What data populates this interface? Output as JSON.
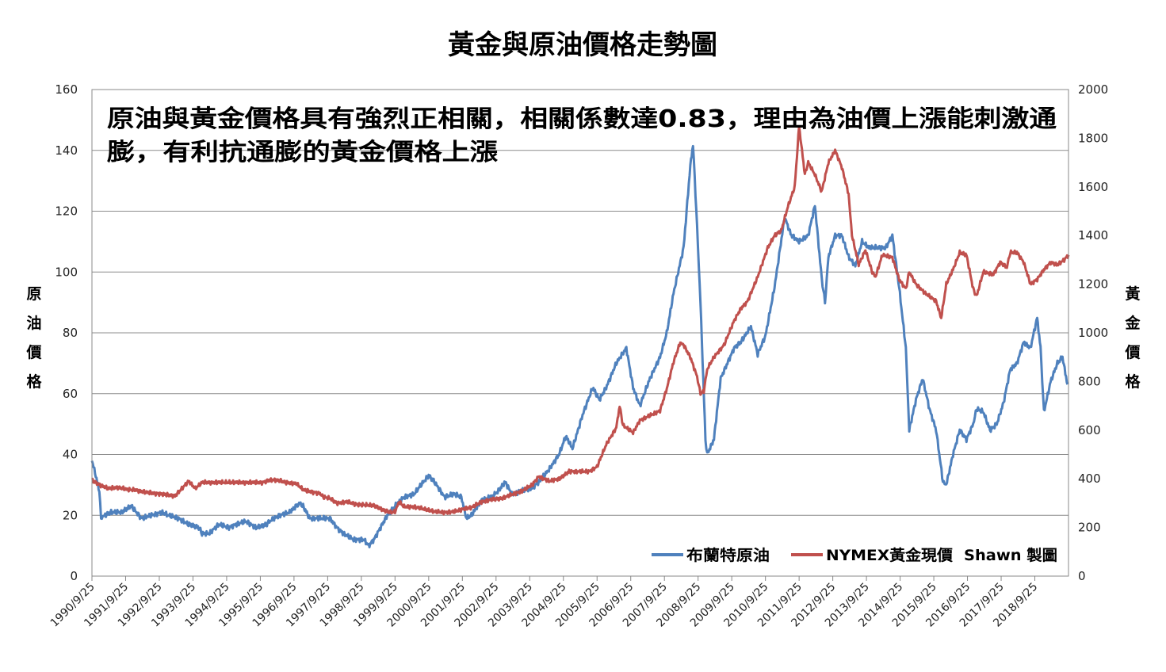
{
  "chart_data": {
    "type": "line",
    "title": "黃金與原油價格走勢圖",
    "annotation_lines": [
      "原油與黃金價格具有強烈正相關，相關係數達0.83，理由為油價上漲能刺激通",
      "膨，有利抗通膨的黃金價格上漲"
    ],
    "ylabel_left": [
      "原",
      "油",
      "價",
      "格"
    ],
    "ylabel_right": [
      "黃",
      "金",
      "價",
      "格"
    ],
    "ylim_left": [
      0,
      160
    ],
    "ylim_right": [
      0,
      2000
    ],
    "yticks_left": [
      "0",
      "20",
      "40",
      "60",
      "80",
      "100",
      "120",
      "140",
      "160"
    ],
    "yticks_right": [
      "0",
      "200",
      "400",
      "600",
      "800",
      "1000",
      "1200",
      "1400",
      "1600",
      "1800",
      "2000"
    ],
    "xlim": [
      1990.73,
      2019.73
    ],
    "categories": [
      "1990/9/25",
      "1991/9/25",
      "1992/9/25",
      "1993/9/25",
      "1994/9/25",
      "1995/9/25",
      "1996/9/25",
      "1997/9/25",
      "1998/9/25",
      "1999/9/25",
      "2000/9/25",
      "2001/9/25",
      "2002/9/25",
      "2003/9/25",
      "2004/9/25",
      "2005/9/25",
      "2006/9/25",
      "2007/9/25",
      "2008/9/25",
      "2009/9/25",
      "2010/9/25",
      "2011/9/25",
      "2012/9/25",
      "2013/9/25",
      "2014/9/25",
      "2015/9/25",
      "2016/9/25",
      "2017/9/25",
      "2018/9/25"
    ],
    "credit": "Shawn 製圖",
    "series": [
      {
        "name": "布蘭特原油",
        "axis": "left",
        "color": "#4f81bd",
        "points": [
          [
            1990.73,
            38
          ],
          [
            1990.8,
            35
          ],
          [
            1990.95,
            28
          ],
          [
            1991.0,
            19
          ],
          [
            1991.1,
            20
          ],
          [
            1991.3,
            21
          ],
          [
            1991.6,
            21
          ],
          [
            1991.9,
            23
          ],
          [
            1992.2,
            19
          ],
          [
            1992.5,
            20
          ],
          [
            1992.8,
            21
          ],
          [
            1993.0,
            20
          ],
          [
            1993.3,
            19
          ],
          [
            1993.6,
            17
          ],
          [
            1993.9,
            16
          ],
          [
            1994.0,
            14
          ],
          [
            1994.2,
            14
          ],
          [
            1994.5,
            17
          ],
          [
            1994.8,
            16
          ],
          [
            1995.0,
            17
          ],
          [
            1995.3,
            18
          ],
          [
            1995.6,
            16
          ],
          [
            1995.9,
            17
          ],
          [
            1996.0,
            18
          ],
          [
            1996.3,
            20
          ],
          [
            1996.6,
            21
          ],
          [
            1996.8,
            23
          ],
          [
            1996.9,
            24
          ],
          [
            1997.0,
            23
          ],
          [
            1997.2,
            19
          ],
          [
            1997.5,
            19
          ],
          [
            1997.8,
            19
          ],
          [
            1998.0,
            16
          ],
          [
            1998.2,
            14
          ],
          [
            1998.5,
            12
          ],
          [
            1998.8,
            12
          ],
          [
            1998.95,
            10
          ],
          [
            1999.1,
            12
          ],
          [
            1999.3,
            16
          ],
          [
            1999.5,
            20
          ],
          [
            1999.73,
            23
          ],
          [
            2000.0,
            26
          ],
          [
            2000.3,
            27
          ],
          [
            2000.5,
            30
          ],
          [
            2000.73,
            33
          ],
          [
            2000.9,
            31
          ],
          [
            2001.2,
            26
          ],
          [
            2001.5,
            27
          ],
          [
            2001.7,
            26
          ],
          [
            2001.85,
            19
          ],
          [
            2002.0,
            20
          ],
          [
            2002.3,
            25
          ],
          [
            2002.6,
            26
          ],
          [
            2002.8,
            28
          ],
          [
            2003.0,
            31
          ],
          [
            2003.2,
            27
          ],
          [
            2003.5,
            28
          ],
          [
            2003.8,
            29
          ],
          [
            2004.0,
            31
          ],
          [
            2004.3,
            35
          ],
          [
            2004.6,
            40
          ],
          [
            2004.8,
            46
          ],
          [
            2005.0,
            42
          ],
          [
            2005.3,
            53
          ],
          [
            2005.6,
            62
          ],
          [
            2005.8,
            58
          ],
          [
            2006.0,
            62
          ],
          [
            2006.3,
            70
          ],
          [
            2006.6,
            75
          ],
          [
            2006.8,
            62
          ],
          [
            2007.0,
            56
          ],
          [
            2007.3,
            65
          ],
          [
            2007.6,
            72
          ],
          [
            2007.8,
            80
          ],
          [
            2008.0,
            93
          ],
          [
            2008.3,
            108
          ],
          [
            2008.5,
            135
          ],
          [
            2008.58,
            142
          ],
          [
            2008.7,
            115
          ],
          [
            2008.8,
            90
          ],
          [
            2008.95,
            45
          ],
          [
            2009.0,
            40
          ],
          [
            2009.2,
            45
          ],
          [
            2009.4,
            65
          ],
          [
            2009.6,
            70
          ],
          [
            2009.8,
            75
          ],
          [
            2010.0,
            77
          ],
          [
            2010.3,
            82
          ],
          [
            2010.5,
            73
          ],
          [
            2010.73,
            79
          ],
          [
            2011.0,
            95
          ],
          [
            2011.3,
            118
          ],
          [
            2011.5,
            112
          ],
          [
            2011.73,
            110
          ],
          [
            2012.0,
            112
          ],
          [
            2012.2,
            122
          ],
          [
            2012.4,
            98
          ],
          [
            2012.5,
            90
          ],
          [
            2012.6,
            105
          ],
          [
            2012.8,
            112
          ],
          [
            2013.0,
            112
          ],
          [
            2013.2,
            105
          ],
          [
            2013.4,
            102
          ],
          [
            2013.6,
            110
          ],
          [
            2013.8,
            108
          ],
          [
            2014.0,
            108
          ],
          [
            2014.3,
            108
          ],
          [
            2014.5,
            112
          ],
          [
            2014.7,
            95
          ],
          [
            2014.9,
            75
          ],
          [
            2015.0,
            48
          ],
          [
            2015.2,
            58
          ],
          [
            2015.4,
            65
          ],
          [
            2015.6,
            55
          ],
          [
            2015.8,
            48
          ],
          [
            2016.0,
            31
          ],
          [
            2016.1,
            30
          ],
          [
            2016.3,
            40
          ],
          [
            2016.5,
            48
          ],
          [
            2016.7,
            45
          ],
          [
            2016.9,
            50
          ],
          [
            2017.0,
            55
          ],
          [
            2017.2,
            54
          ],
          [
            2017.4,
            48
          ],
          [
            2017.6,
            50
          ],
          [
            2017.8,
            57
          ],
          [
            2018.0,
            68
          ],
          [
            2018.2,
            70
          ],
          [
            2018.4,
            77
          ],
          [
            2018.6,
            75
          ],
          [
            2018.8,
            85
          ],
          [
            2018.9,
            75
          ],
          [
            2019.0,
            54
          ],
          [
            2019.2,
            64
          ],
          [
            2019.4,
            70
          ],
          [
            2019.55,
            72
          ],
          [
            2019.7,
            63
          ]
        ]
      },
      {
        "name": "NYMEX黃金現價",
        "axis": "right",
        "color": "#c0504d",
        "points": [
          [
            1990.73,
            395
          ],
          [
            1990.9,
            380
          ],
          [
            1991.2,
            360
          ],
          [
            1991.5,
            365
          ],
          [
            1991.8,
            355
          ],
          [
            1992.0,
            355
          ],
          [
            1992.3,
            345
          ],
          [
            1992.6,
            340
          ],
          [
            1992.9,
            335
          ],
          [
            1993.2,
            330
          ],
          [
            1993.4,
            360
          ],
          [
            1993.6,
            390
          ],
          [
            1993.8,
            360
          ],
          [
            1994.0,
            385
          ],
          [
            1994.3,
            385
          ],
          [
            1994.6,
            385
          ],
          [
            1994.9,
            385
          ],
          [
            1995.2,
            385
          ],
          [
            1995.5,
            385
          ],
          [
            1995.8,
            385
          ],
          [
            1996.0,
            395
          ],
          [
            1996.2,
            395
          ],
          [
            1996.5,
            385
          ],
          [
            1996.8,
            380
          ],
          [
            1997.0,
            355
          ],
          [
            1997.3,
            345
          ],
          [
            1997.5,
            340
          ],
          [
            1997.6,
            325
          ],
          [
            1997.8,
            320
          ],
          [
            1998.0,
            300
          ],
          [
            1998.3,
            305
          ],
          [
            1998.6,
            295
          ],
          [
            1998.9,
            292
          ],
          [
            1999.1,
            290
          ],
          [
            1999.4,
            270
          ],
          [
            1999.6,
            262
          ],
          [
            1999.73,
            265
          ],
          [
            1999.85,
            305
          ],
          [
            2000.0,
            285
          ],
          [
            2000.3,
            285
          ],
          [
            2000.6,
            275
          ],
          [
            2000.9,
            265
          ],
          [
            2001.2,
            262
          ],
          [
            2001.5,
            265
          ],
          [
            2001.8,
            278
          ],
          [
            2002.0,
            282
          ],
          [
            2002.3,
            305
          ],
          [
            2002.6,
            315
          ],
          [
            2002.9,
            320
          ],
          [
            2003.2,
            335
          ],
          [
            2003.5,
            350
          ],
          [
            2003.8,
            375
          ],
          [
            2004.0,
            410
          ],
          [
            2004.3,
            390
          ],
          [
            2004.6,
            400
          ],
          [
            2004.9,
            430
          ],
          [
            2005.2,
            430
          ],
          [
            2005.5,
            430
          ],
          [
            2005.73,
            450
          ],
          [
            2006.0,
            540
          ],
          [
            2006.3,
            610
          ],
          [
            2006.4,
            700
          ],
          [
            2006.5,
            620
          ],
          [
            2006.8,
            590
          ],
          [
            2007.0,
            640
          ],
          [
            2007.3,
            660
          ],
          [
            2007.6,
            680
          ],
          [
            2007.8,
            770
          ],
          [
            2008.0,
            880
          ],
          [
            2008.2,
            960
          ],
          [
            2008.3,
            950
          ],
          [
            2008.5,
            900
          ],
          [
            2008.7,
            820
          ],
          [
            2008.8,
            750
          ],
          [
            2008.9,
            760
          ],
          [
            2009.0,
            850
          ],
          [
            2009.2,
            900
          ],
          [
            2009.5,
            950
          ],
          [
            2009.8,
            1050
          ],
          [
            2010.0,
            1100
          ],
          [
            2010.2,
            1130
          ],
          [
            2010.5,
            1230
          ],
          [
            2010.8,
            1350
          ],
          [
            2011.0,
            1400
          ],
          [
            2011.2,
            1420
          ],
          [
            2011.4,
            1520
          ],
          [
            2011.6,
            1600
          ],
          [
            2011.73,
            1850
          ],
          [
            2011.9,
            1650
          ],
          [
            2012.0,
            1700
          ],
          [
            2012.2,
            1650
          ],
          [
            2012.4,
            1580
          ],
          [
            2012.6,
            1700
          ],
          [
            2012.8,
            1750
          ],
          [
            2013.0,
            1680
          ],
          [
            2013.2,
            1570
          ],
          [
            2013.3,
            1400
          ],
          [
            2013.5,
            1280
          ],
          [
            2013.7,
            1340
          ],
          [
            2013.9,
            1250
          ],
          [
            2014.0,
            1230
          ],
          [
            2014.2,
            1320
          ],
          [
            2014.5,
            1310
          ],
          [
            2014.7,
            1220
          ],
          [
            2014.9,
            1180
          ],
          [
            2015.0,
            1250
          ],
          [
            2015.2,
            1200
          ],
          [
            2015.5,
            1160
          ],
          [
            2015.8,
            1130
          ],
          [
            2015.95,
            1060
          ],
          [
            2016.1,
            1200
          ],
          [
            2016.3,
            1260
          ],
          [
            2016.5,
            1330
          ],
          [
            2016.7,
            1320
          ],
          [
            2016.9,
            1180
          ],
          [
            2017.0,
            1150
          ],
          [
            2017.2,
            1250
          ],
          [
            2017.5,
            1240
          ],
          [
            2017.7,
            1290
          ],
          [
            2017.9,
            1270
          ],
          [
            2018.0,
            1330
          ],
          [
            2018.2,
            1330
          ],
          [
            2018.4,
            1290
          ],
          [
            2018.6,
            1200
          ],
          [
            2018.8,
            1220
          ],
          [
            2019.0,
            1260
          ],
          [
            2019.2,
            1290
          ],
          [
            2019.4,
            1280
          ],
          [
            2019.6,
            1300
          ],
          [
            2019.73,
            1320
          ]
        ]
      }
    ]
  }
}
